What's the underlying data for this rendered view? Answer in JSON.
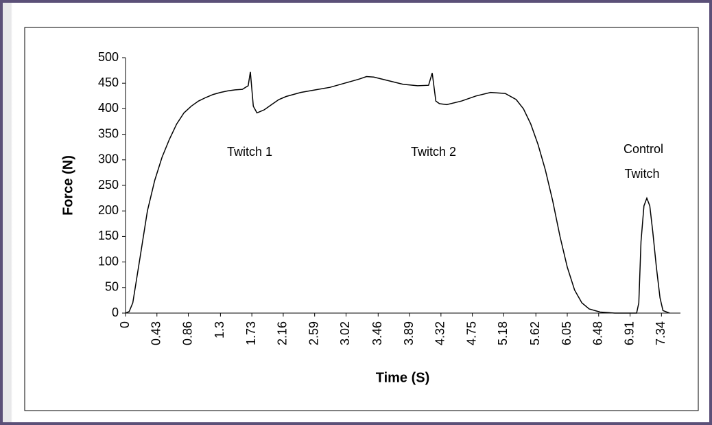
{
  "chart_data": {
    "type": "line",
    "xlabel": "Time (S)",
    "ylabel": "Force (N)",
    "annotations": [
      "Twitch 1",
      "Twitch 2",
      "Control",
      "Twitch"
    ],
    "x": [
      0,
      0.05,
      0.1,
      0.2,
      0.3,
      0.4,
      0.5,
      0.6,
      0.7,
      0.8,
      0.9,
      1.0,
      1.1,
      1.2,
      1.3,
      1.4,
      1.5,
      1.6,
      1.68,
      1.71,
      1.75,
      1.8,
      1.9,
      2.0,
      2.1,
      2.2,
      2.4,
      2.6,
      2.8,
      3.0,
      3.2,
      3.3,
      3.4,
      3.6,
      3.8,
      4.0,
      4.15,
      4.2,
      4.25,
      4.3,
      4.4,
      4.6,
      4.8,
      5.0,
      5.2,
      5.35,
      5.45,
      5.55,
      5.65,
      5.75,
      5.85,
      5.95,
      6.05,
      6.15,
      6.25,
      6.35,
      6.5,
      6.7,
      6.9,
      7.0,
      7.03,
      7.06,
      7.1,
      7.14,
      7.18,
      7.22,
      7.27,
      7.32,
      7.36,
      7.45
    ],
    "values": [
      0,
      3,
      20,
      110,
      200,
      260,
      305,
      340,
      370,
      392,
      405,
      415,
      422,
      428,
      432,
      435,
      437,
      438,
      445,
      472,
      405,
      392,
      398,
      408,
      418,
      424,
      432,
      437,
      442,
      450,
      458,
      463,
      462,
      455,
      448,
      445,
      446,
      470,
      415,
      410,
      408,
      415,
      425,
      432,
      430,
      418,
      400,
      370,
      330,
      280,
      220,
      150,
      90,
      45,
      20,
      8,
      2,
      0,
      0,
      0,
      20,
      140,
      210,
      225,
      210,
      160,
      90,
      30,
      5,
      0
    ],
    "color": "#000000",
    "xlim": [
      0,
      7.6
    ],
    "ylim": [
      0,
      500
    ],
    "xticks": [
      0,
      0.43,
      0.86,
      1.3,
      1.73,
      2.16,
      2.59,
      3.02,
      3.46,
      3.89,
      4.32,
      4.75,
      5.18,
      5.62,
      6.05,
      6.48,
      6.91,
      7.34
    ],
    "yticks": [
      0,
      50,
      100,
      150,
      200,
      250,
      300,
      350,
      400,
      450,
      500
    ],
    "grid": false
  }
}
